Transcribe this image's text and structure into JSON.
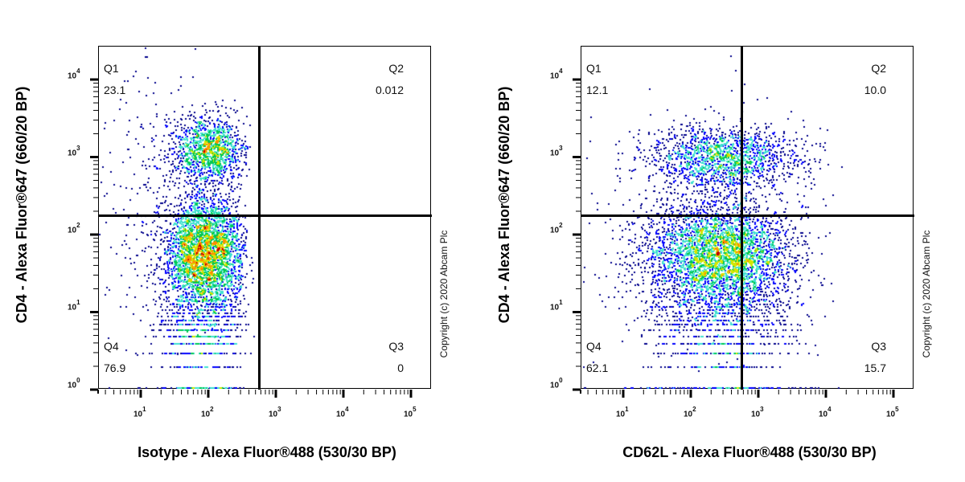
{
  "chart_data": [
    {
      "type": "scatter",
      "subtype": "flow-cytometry-pseudocolor-density",
      "title": "",
      "xlabel": "Isotype - Alexa Fluor®488 (530/30 BP)",
      "ylabel": "CD4 - Alexa Fluor®647 (660/20 BP)",
      "xscale": "log",
      "yscale": "log",
      "x_ticks": [
        "10^1",
        "10^2",
        "10^3",
        "10^4",
        "10^5"
      ],
      "y_ticks": [
        "10^0",
        "10^1",
        "10^2",
        "10^3",
        "10^4"
      ],
      "xlim_log10": [
        0.45,
        5.15
      ],
      "ylim_log10": [
        0.0,
        4.45
      ],
      "gate": {
        "x": 740,
        "y": 170
      },
      "quadrants": [
        {
          "name": "Q1",
          "percent": "23.1"
        },
        {
          "name": "Q2",
          "percent": "0.012"
        },
        {
          "name": "Q3",
          "percent": "0"
        },
        {
          "name": "Q4",
          "percent": "76.9"
        }
      ],
      "clusters": [
        {
          "cx_log": 2.0,
          "cy_log": 3.1,
          "sx": 0.28,
          "sy": 0.22,
          "n": 1300
        },
        {
          "cx_log": 1.95,
          "cy_log": 1.8,
          "sx": 0.3,
          "sy": 0.35,
          "n": 3200
        },
        {
          "cx_log": 1.9,
          "cy_log": 0.85,
          "sx": 0.35,
          "sy": 0.35,
          "n": 900,
          "discrete": true
        },
        {
          "cx_log": 1.2,
          "cy_log": 2.6,
          "sx": 0.5,
          "sy": 0.9,
          "n": 250
        },
        {
          "cx_log": 1.9,
          "cy_log": 0.0,
          "sx": 0.4,
          "sy": 0.0,
          "n": 500,
          "floor": true
        }
      ],
      "xmax_log_clip": 2.55
    },
    {
      "type": "scatter",
      "subtype": "flow-cytometry-pseudocolor-density",
      "title": "",
      "xlabel": "CD62L - Alexa Fluor®488 (530/30 BP)",
      "ylabel": "CD4 - Alexa Fluor®647 (660/20 BP)",
      "xscale": "log",
      "yscale": "log",
      "x_ticks": [
        "10^1",
        "10^2",
        "10^3",
        "10^4",
        "10^5"
      ],
      "y_ticks": [
        "10^0",
        "10^1",
        "10^2",
        "10^3",
        "10^4"
      ],
      "xlim_log10": [
        0.45,
        5.15
      ],
      "ylim_log10": [
        0.0,
        4.45
      ],
      "gate": {
        "x": 740,
        "y": 170
      },
      "quadrants": [
        {
          "name": "Q1",
          "percent": "12.1"
        },
        {
          "name": "Q2",
          "percent": "10.0"
        },
        {
          "name": "Q3",
          "percent": "15.7"
        },
        {
          "name": "Q4",
          "percent": "62.1"
        }
      ],
      "clusters": [
        {
          "cx_log": 2.5,
          "cy_log": 3.0,
          "sx": 0.55,
          "sy": 0.2,
          "n": 1500
        },
        {
          "cx_log": 2.4,
          "cy_log": 1.75,
          "sx": 0.55,
          "sy": 0.35,
          "n": 3600
        },
        {
          "cx_log": 2.4,
          "cy_log": 0.85,
          "sx": 0.55,
          "sy": 0.35,
          "n": 900,
          "discrete": true
        },
        {
          "cx_log": 2.2,
          "cy_log": 2.0,
          "sx": 1.0,
          "sy": 0.9,
          "n": 300
        },
        {
          "cx_log": 2.4,
          "cy_log": 0.0,
          "sx": 0.8,
          "sy": 0.0,
          "n": 600,
          "floor": true
        }
      ],
      "xmax_log_clip": 4.2
    }
  ],
  "density_colors": [
    "#00008b",
    "#0000ff",
    "#40e0d0",
    "#00c853",
    "#d4e600",
    "#ff8c00",
    "#c00000"
  ],
  "left_plot": {
    "y_axis_title": "CD4 - Alexa Fluor®647 (660/20 BP)",
    "x_axis_title": "Isotype - Alexa Fluor®488 (530/30 BP)",
    "q1": {
      "name": "Q1",
      "value": "23.1"
    },
    "q2": {
      "name": "Q2",
      "value": "0.012"
    },
    "q3": {
      "name": "Q3",
      "value": "0"
    },
    "q4": {
      "name": "Q4",
      "value": "76.9"
    },
    "copyright": "Copyright (c) 2020 Abcam Plc"
  },
  "right_plot": {
    "y_axis_title": "CD4 - Alexa Fluor®647 (660/20 BP)",
    "x_axis_title": "CD62L - Alexa Fluor®488 (530/30 BP)",
    "q1": {
      "name": "Q1",
      "value": "12.1"
    },
    "q2": {
      "name": "Q2",
      "value": "10.0"
    },
    "q3": {
      "name": "Q3",
      "value": "Q3"
    },
    "q3_value": "15.7",
    "q4": {
      "name": "Q4",
      "value": "62.1"
    },
    "copyright": "Copyright (c) 2020 Abcam Plc"
  },
  "axis_tick_exponents": {
    "x": [
      "1",
      "2",
      "3",
      "4",
      "5"
    ],
    "y": [
      "0",
      "1",
      "2",
      "3",
      "4"
    ]
  }
}
